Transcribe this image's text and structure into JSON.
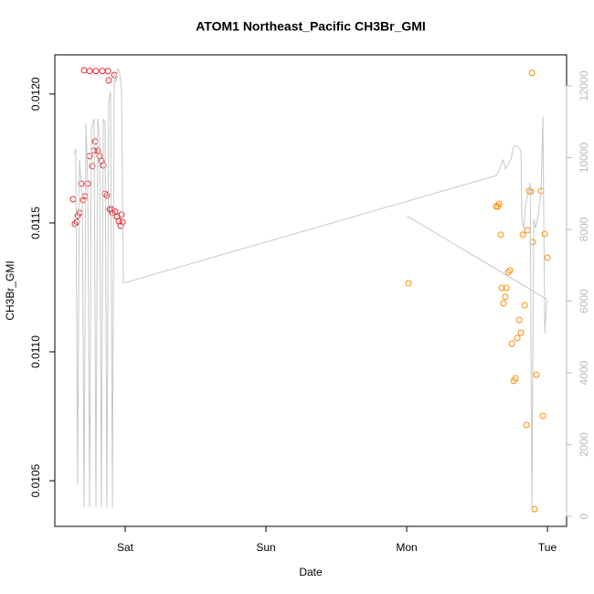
{
  "chart_data": {
    "type": "scatter",
    "title": "ATOM1 Northeast_Pacific CH3Br_GMI",
    "x_label": "Date",
    "y_label": "CH3Br_GMI",
    "xlim": [
      -0.5,
      3.136
    ],
    "ylim": [
      0.010323,
      0.012152
    ],
    "y2lim": [
      -280,
      12866
    ],
    "xticks": [
      {
        "value": 0,
        "label": "Sat"
      },
      {
        "value": 1,
        "label": "Sun"
      },
      {
        "value": 2,
        "label": "Mon"
      },
      {
        "value": 3,
        "label": "Tue"
      }
    ],
    "yticks": [
      0.0105,
      {
        "value": 0.011,
        "label": "0.0110"
      },
      0.0115,
      {
        "value": 0.012,
        "label": "0.0120"
      }
    ],
    "y2ticks": [
      0,
      2000,
      4000,
      6000,
      8000,
      10000,
      12000
    ],
    "series": [
      {
        "type": "scatter",
        "color": "#e8262a",
        "x": [
          -0.37,
          -0.357,
          -0.344,
          -0.338,
          -0.325,
          -0.312,
          -0.299,
          -0.292,
          -0.286,
          -0.266,
          -0.253,
          -0.253,
          -0.234,
          -0.221,
          -0.214,
          -0.208,
          -0.195,
          -0.182,
          -0.169,
          -0.162,
          -0.156,
          -0.143,
          -0.13,
          -0.123,
          -0.117,
          -0.11,
          -0.097,
          -0.091,
          -0.078,
          -0.071,
          -0.058,
          -0.045,
          -0.032,
          -0.019,
          -0.026
        ],
        "values": [
          0.011592,
          0.011496,
          0.011504,
          0.011528,
          0.011539,
          0.011652,
          0.011589,
          0.012092,
          0.011603,
          0.011652,
          0.012089,
          0.011759,
          0.01172,
          0.01178,
          0.011816,
          0.012089,
          0.01178,
          0.011759,
          0.011741,
          0.012089,
          0.011723,
          0.011613,
          0.011606,
          0.012089,
          0.012053,
          0.011553,
          0.011553,
          0.011539,
          0.012074,
          0.011543,
          0.011525,
          0.011507,
          0.011489,
          0.011504,
          0.011532
        ]
      },
      {
        "type": "scatter",
        "color": "#ff8c00",
        "x": [
          2.013,
          2.636,
          2.649,
          2.656,
          2.669,
          2.675,
          2.688,
          2.701,
          2.708,
          2.721,
          2.734,
          2.747,
          2.76,
          2.773,
          2.786,
          2.799,
          2.812,
          2.825,
          2.838,
          2.851,
          2.857,
          2.87,
          2.883,
          2.89,
          2.896,
          2.909,
          2.922,
          2.955,
          2.968,
          2.981,
          3.0
        ],
        "values": [
          0.011266,
          0.011564,
          0.011564,
          0.011574,
          0.011454,
          0.011248,
          0.011188,
          0.011213,
          0.011248,
          0.011309,
          0.011316,
          0.011032,
          0.010887,
          0.010897,
          0.011053,
          0.011124,
          0.011074,
          0.011454,
          0.011181,
          0.010716,
          0.011472,
          0.011624,
          0.011621,
          0.012082,
          0.011426,
          0.01039,
          0.010911,
          0.011624,
          0.010752,
          0.011457,
          0.011365
        ]
      },
      {
        "type": "line",
        "axis": "y2",
        "color": "#c8c8c8",
        "x": [
          -0.364,
          -0.351,
          -0.338,
          -0.325,
          -0.305,
          -0.292,
          -0.279,
          -0.266,
          -0.253,
          -0.24,
          -0.221,
          -0.208,
          -0.195,
          -0.182,
          -0.169,
          -0.156,
          -0.143,
          -0.13,
          -0.117,
          -0.104,
          -0.091,
          -0.078,
          -0.065,
          -0.052,
          -0.039,
          -0.026,
          -0.013,
          2.636,
          2.662,
          2.675,
          2.688,
          2.701,
          2.721,
          2.74,
          2.76,
          2.786,
          2.812,
          2.818,
          2.831,
          2.844,
          2.864,
          2.877,
          2.89,
          2.903,
          2.916,
          2.929,
          2.942,
          2.955,
          2.968,
          2.981,
          2.994,
          3.006,
          null,
          2.0,
          3.0
        ],
        "values": [
          10120,
          10240,
          890,
          9940,
          8920,
          250,
          10960,
          9300,
          250,
          10830,
          11080,
          250,
          11080,
          10570,
          250,
          11080,
          10960,
          250,
          11590,
          11850,
          250,
          12360,
          12100,
          12490,
          12360,
          11850,
          6500,
          9500,
          9680,
          9860,
          9940,
          9680,
          9810,
          9940,
          10320,
          10320,
          10190,
          8280,
          8030,
          8660,
          9050,
          9300,
          250,
          8280,
          8030,
          8280,
          8660,
          9050,
          11140,
          5100,
          5990,
          5990,
          null,
          8380,
          6040
        ]
      }
    ]
  }
}
